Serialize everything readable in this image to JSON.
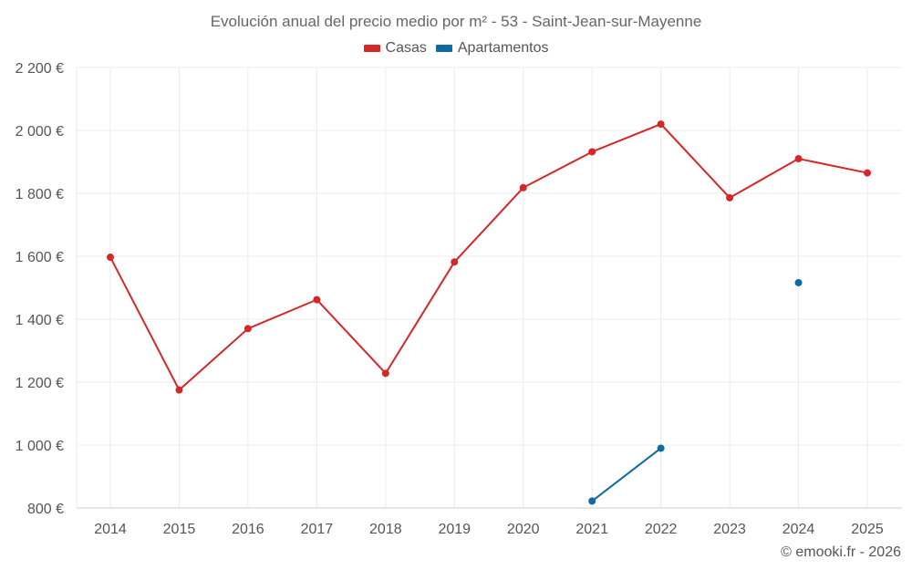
{
  "chart_data": {
    "type": "line",
    "title": "Evolución anual del precio medio por m² - 53 - Saint-Jean-sur-Mayenne",
    "xlabel": "",
    "ylabel": "",
    "categories": [
      "2014",
      "2015",
      "2016",
      "2017",
      "2018",
      "2019",
      "2020",
      "2021",
      "2022",
      "2023",
      "2024",
      "2025"
    ],
    "y_ticks": [
      800,
      1000,
      1200,
      1400,
      1600,
      1800,
      2000,
      2200
    ],
    "y_tick_labels": [
      "800 €",
      "1 000 €",
      "1 200 €",
      "1 400 €",
      "1 600 €",
      "1 800 €",
      "2 000 €",
      "2 200 €"
    ],
    "ylim": [
      800,
      2200
    ],
    "grid": true,
    "legend_position": "top-center",
    "series": [
      {
        "name": "Casas",
        "color": "#d62728",
        "values": [
          1597,
          1175,
          1370,
          1462,
          1228,
          1582,
          1818,
          1932,
          2020,
          1786,
          1910,
          1865
        ]
      },
      {
        "name": "Apartamentos",
        "color": "#0d6aa3",
        "values": [
          null,
          null,
          null,
          null,
          null,
          null,
          null,
          822,
          990,
          null,
          1516,
          null
        ]
      }
    ]
  },
  "footer": "© emooki.fr - 2026"
}
